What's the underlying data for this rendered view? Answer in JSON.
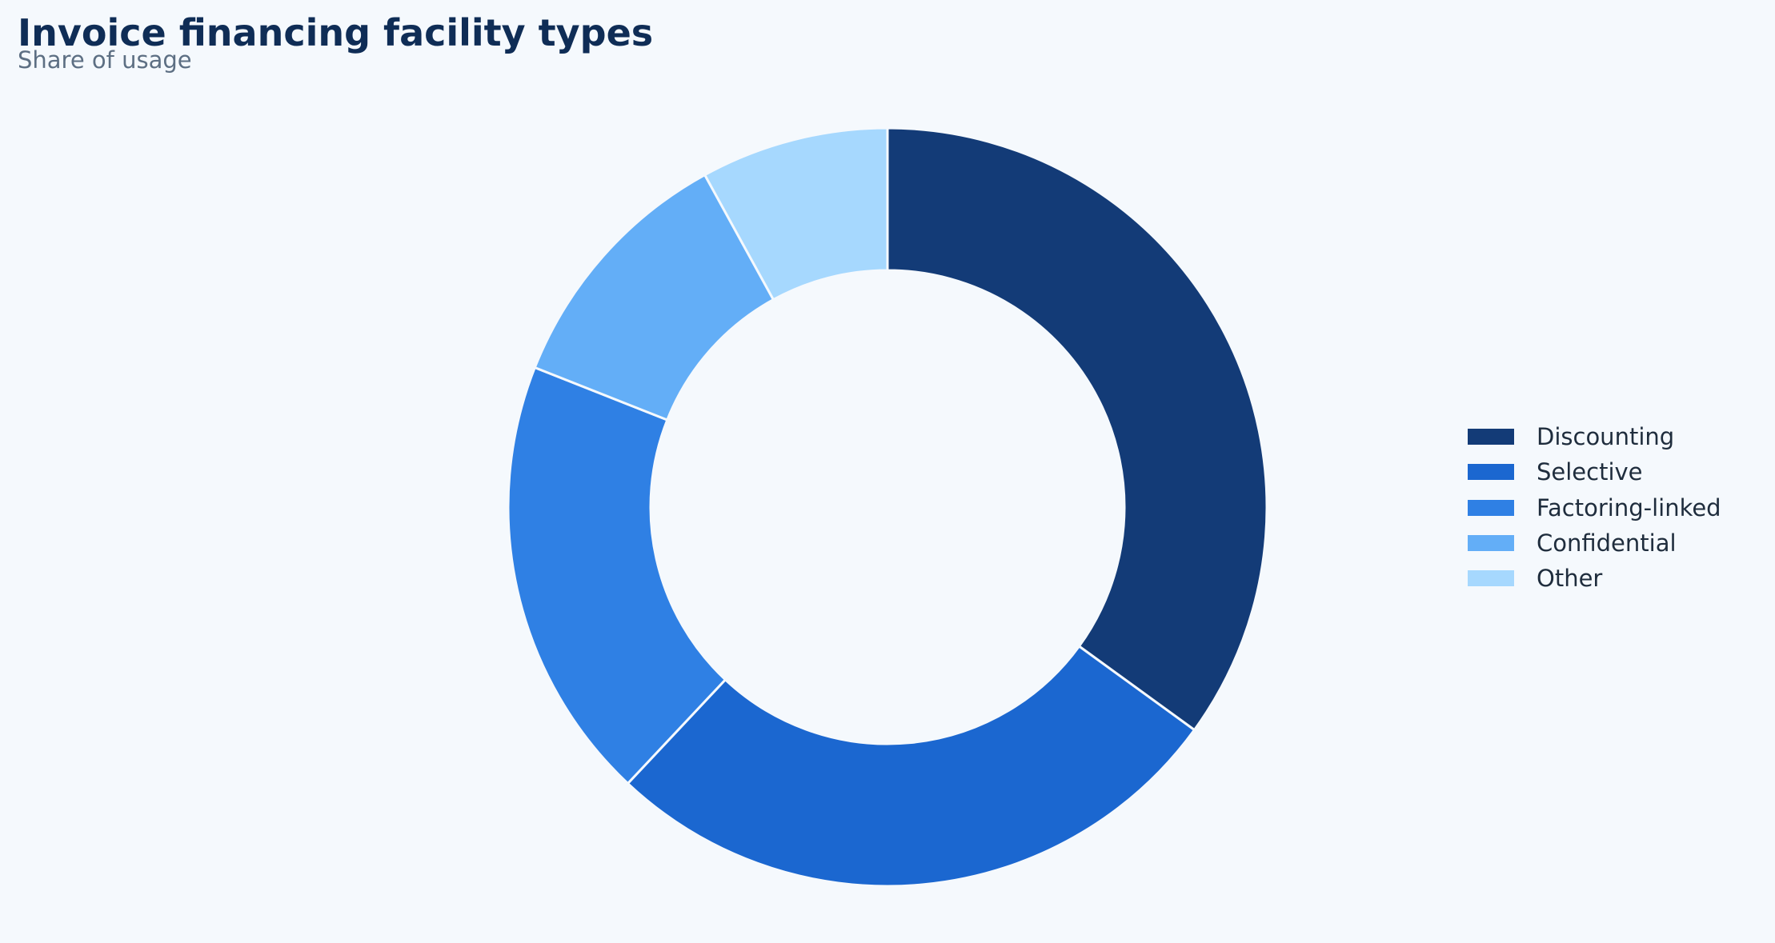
{
  "header": {
    "title": "Invoice financing facility types",
    "subtitle": "Share of usage"
  },
  "chart_data": {
    "type": "pie",
    "variant": "donut",
    "title": "Invoice financing facility types",
    "subtitle": "Share of usage",
    "categories": [
      "Discounting",
      "Selective",
      "Factoring-linked",
      "Confidential",
      "Other"
    ],
    "values": [
      35,
      27,
      19,
      11,
      8
    ],
    "colors": [
      "#133b77",
      "#1b67d0",
      "#2f80e4",
      "#63aef7",
      "#a6d8fe"
    ],
    "start_angle_deg": 90,
    "direction": "clockwise",
    "legend": "right",
    "slice_border_color": "#f5f9fd"
  }
}
